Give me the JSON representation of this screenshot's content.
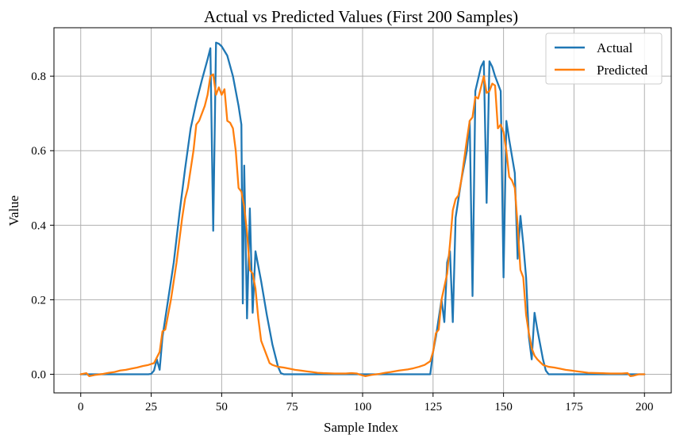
{
  "chart_data": {
    "type": "line",
    "title": "Actual vs Predicted Values (First 200 Samples)",
    "xlabel": "Sample Index",
    "ylabel": "Value",
    "xlim": [
      -9.5,
      209.5
    ],
    "ylim": [
      -0.05,
      0.93
    ],
    "grid": true,
    "legend_position": "top-right",
    "xticks": [
      0,
      25,
      50,
      75,
      100,
      125,
      150,
      175,
      200
    ],
    "xtick_labels": [
      "0",
      "25",
      "50",
      "75",
      "100",
      "125",
      "150",
      "175",
      "200"
    ],
    "yticks": [
      0.0,
      0.2,
      0.4,
      0.6,
      0.8
    ],
    "ytick_labels": [
      "0.0",
      "0.2",
      "0.4",
      "0.6",
      "0.8"
    ],
    "series": [
      {
        "name": "Actual",
        "color": "#1f77b4",
        "points": [
          [
            0,
            0
          ],
          [
            24,
            0
          ],
          [
            25,
            0.001
          ],
          [
            26,
            0.01
          ],
          [
            27,
            0.04
          ],
          [
            28,
            0.012
          ],
          [
            29,
            0.1
          ],
          [
            31,
            0.2
          ],
          [
            33,
            0.3
          ],
          [
            35,
            0.43
          ],
          [
            37,
            0.55
          ],
          [
            39,
            0.66
          ],
          [
            41,
            0.73
          ],
          [
            43,
            0.79
          ],
          [
            45,
            0.845
          ],
          [
            46,
            0.875
          ],
          [
            47,
            0.385
          ],
          [
            48,
            0.89
          ],
          [
            49,
            0.887
          ],
          [
            50,
            0.88
          ],
          [
            52,
            0.855
          ],
          [
            54,
            0.8
          ],
          [
            56,
            0.72
          ],
          [
            57,
            0.67
          ],
          [
            57.5,
            0.19
          ],
          [
            58,
            0.56
          ],
          [
            59,
            0.15
          ],
          [
            60,
            0.445
          ],
          [
            61,
            0.165
          ],
          [
            62,
            0.33
          ],
          [
            64,
            0.25
          ],
          [
            66,
            0.16
          ],
          [
            68,
            0.08
          ],
          [
            70,
            0.02
          ],
          [
            71,
            0.003
          ],
          [
            72,
            0
          ],
          [
            124,
            0
          ],
          [
            125,
            0.06
          ],
          [
            126,
            0.1
          ],
          [
            127,
            0.15
          ],
          [
            128,
            0.2
          ],
          [
            129,
            0.14
          ],
          [
            130,
            0.3
          ],
          [
            131,
            0.33
          ],
          [
            132,
            0.14
          ],
          [
            133,
            0.42
          ],
          [
            135,
            0.52
          ],
          [
            137,
            0.6
          ],
          [
            138,
            0.68
          ],
          [
            139,
            0.21
          ],
          [
            140,
            0.76
          ],
          [
            142,
            0.825
          ],
          [
            143,
            0.84
          ],
          [
            144,
            0.46
          ],
          [
            145,
            0.84
          ],
          [
            146,
            0.825
          ],
          [
            147,
            0.8
          ],
          [
            149,
            0.76
          ],
          [
            150,
            0.26
          ],
          [
            151,
            0.68
          ],
          [
            152,
            0.63
          ],
          [
            154,
            0.54
          ],
          [
            155,
            0.31
          ],
          [
            156,
            0.425
          ],
          [
            157,
            0.35
          ],
          [
            158,
            0.26
          ],
          [
            159,
            0.1
          ],
          [
            160,
            0.04
          ],
          [
            161,
            0.165
          ],
          [
            162,
            0.12
          ],
          [
            163,
            0.08
          ],
          [
            164,
            0.04
          ],
          [
            165,
            0.01
          ],
          [
            166,
            0
          ],
          [
            200,
            0
          ]
        ]
      },
      {
        "name": "Predicted",
        "color": "#ff7f0e",
        "points": [
          [
            0,
            0
          ],
          [
            2,
            0.003
          ],
          [
            3,
            -0.005
          ],
          [
            5,
            -0.002
          ],
          [
            8,
            0.001
          ],
          [
            10,
            0.004
          ],
          [
            12,
            0.006
          ],
          [
            14,
            0.01
          ],
          [
            16,
            0.012
          ],
          [
            18,
            0.015
          ],
          [
            20,
            0.018
          ],
          [
            22,
            0.022
          ],
          [
            24,
            0.025
          ],
          [
            26,
            0.03
          ],
          [
            27,
            0.045
          ],
          [
            28,
            0.06
          ],
          [
            29,
            0.115
          ],
          [
            30,
            0.12
          ],
          [
            32,
            0.2
          ],
          [
            34,
            0.3
          ],
          [
            36,
            0.42
          ],
          [
            37,
            0.47
          ],
          [
            38,
            0.5
          ],
          [
            40,
            0.6
          ],
          [
            41,
            0.67
          ],
          [
            42,
            0.68
          ],
          [
            43,
            0.7
          ],
          [
            44,
            0.72
          ],
          [
            45,
            0.75
          ],
          [
            46,
            0.8
          ],
          [
            47,
            0.805
          ],
          [
            48,
            0.75
          ],
          [
            49,
            0.77
          ],
          [
            50,
            0.75
          ],
          [
            51,
            0.765
          ],
          [
            52,
            0.68
          ],
          [
            53,
            0.675
          ],
          [
            54,
            0.66
          ],
          [
            55,
            0.6
          ],
          [
            56,
            0.5
          ],
          [
            57,
            0.49
          ],
          [
            58,
            0.45
          ],
          [
            59,
            0.38
          ],
          [
            60,
            0.28
          ],
          [
            61,
            0.27
          ],
          [
            62,
            0.23
          ],
          [
            63,
            0.15
          ],
          [
            64,
            0.09
          ],
          [
            66,
            0.05
          ],
          [
            67,
            0.03
          ],
          [
            68,
            0.025
          ],
          [
            70,
            0.02
          ],
          [
            72,
            0.018
          ],
          [
            74,
            0.015
          ],
          [
            76,
            0.012
          ],
          [
            78,
            0.01
          ],
          [
            80,
            0.008
          ],
          [
            82,
            0.006
          ],
          [
            84,
            0.004
          ],
          [
            86,
            0.003
          ],
          [
            90,
            0.002
          ],
          [
            94,
            0.002
          ],
          [
            96,
            0.003
          ],
          [
            98,
            0.002
          ],
          [
            99,
            -0.001
          ],
          [
            100,
            -0.003
          ],
          [
            101,
            -0.005
          ],
          [
            103,
            -0.002
          ],
          [
            106,
            0.001
          ],
          [
            108,
            0.004
          ],
          [
            110,
            0.006
          ],
          [
            113,
            0.01
          ],
          [
            116,
            0.013
          ],
          [
            118,
            0.016
          ],
          [
            120,
            0.02
          ],
          [
            122,
            0.025
          ],
          [
            124,
            0.035
          ],
          [
            125,
            0.06
          ],
          [
            126,
            0.11
          ],
          [
            127,
            0.12
          ],
          [
            128,
            0.2
          ],
          [
            130,
            0.27
          ],
          [
            131,
            0.35
          ],
          [
            132,
            0.44
          ],
          [
            133,
            0.47
          ],
          [
            134,
            0.48
          ],
          [
            135,
            0.52
          ],
          [
            137,
            0.63
          ],
          [
            138,
            0.68
          ],
          [
            139,
            0.69
          ],
          [
            140,
            0.745
          ],
          [
            141,
            0.74
          ],
          [
            142,
            0.77
          ],
          [
            143,
            0.8
          ],
          [
            144,
            0.755
          ],
          [
            145,
            0.76
          ],
          [
            146,
            0.78
          ],
          [
            147,
            0.775
          ],
          [
            148,
            0.66
          ],
          [
            149,
            0.67
          ],
          [
            150,
            0.65
          ],
          [
            151,
            0.6
          ],
          [
            152,
            0.53
          ],
          [
            153,
            0.52
          ],
          [
            154,
            0.5
          ],
          [
            155,
            0.4
          ],
          [
            156,
            0.28
          ],
          [
            157,
            0.26
          ],
          [
            158,
            0.16
          ],
          [
            159,
            0.11
          ],
          [
            160,
            0.07
          ],
          [
            161,
            0.05
          ],
          [
            162,
            0.04
          ],
          [
            164,
            0.025
          ],
          [
            166,
            0.02
          ],
          [
            168,
            0.018
          ],
          [
            170,
            0.015
          ],
          [
            172,
            0.012
          ],
          [
            174,
            0.01
          ],
          [
            176,
            0.008
          ],
          [
            178,
            0.006
          ],
          [
            180,
            0.004
          ],
          [
            184,
            0.003
          ],
          [
            188,
            0.002
          ],
          [
            192,
            0.002
          ],
          [
            194,
            0.003
          ],
          [
            195,
            -0.005
          ],
          [
            196,
            -0.004
          ],
          [
            197,
            -0.002
          ],
          [
            198,
            0
          ],
          [
            200,
            0
          ]
        ]
      }
    ]
  }
}
